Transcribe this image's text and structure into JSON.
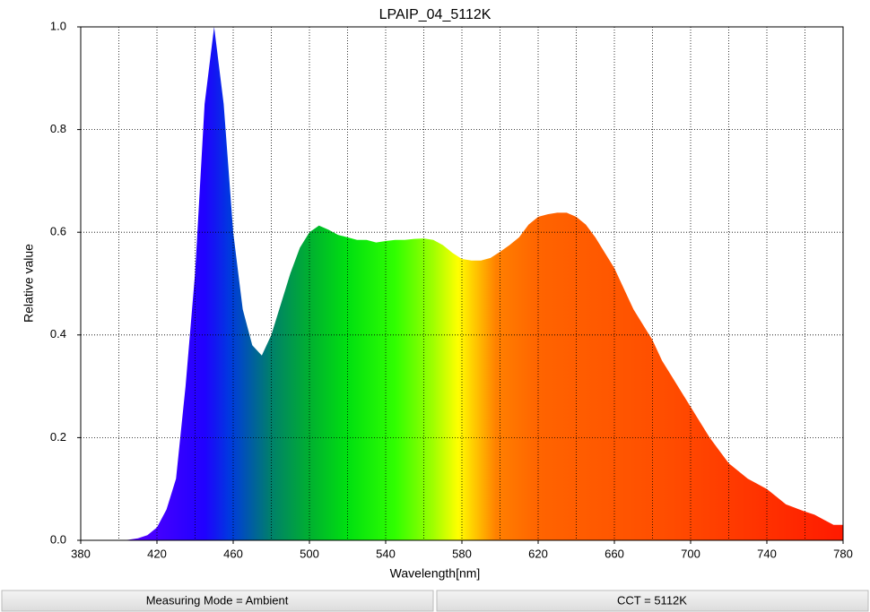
{
  "chart_data": {
    "type": "area",
    "title": "LPAIP_04_5112K",
    "x_label": "Wavelength[nm]",
    "y_label": "Relative value",
    "x": [
      380,
      385,
      390,
      395,
      400,
      405,
      410,
      415,
      420,
      425,
      430,
      435,
      440,
      445,
      450,
      455,
      460,
      465,
      470,
      475,
      480,
      485,
      490,
      495,
      500,
      505,
      510,
      515,
      520,
      525,
      530,
      535,
      540,
      545,
      550,
      555,
      560,
      565,
      570,
      575,
      580,
      585,
      590,
      595,
      600,
      605,
      610,
      615,
      620,
      625,
      630,
      635,
      640,
      645,
      650,
      655,
      660,
      665,
      670,
      675,
      680,
      685,
      690,
      695,
      700,
      705,
      710,
      715,
      720,
      725,
      730,
      735,
      740,
      745,
      750,
      755,
      760,
      765,
      770,
      775,
      780
    ],
    "values": [
      0,
      0,
      0,
      0,
      0,
      0.001,
      0.004,
      0.01,
      0.025,
      0.06,
      0.12,
      0.3,
      0.52,
      0.85,
      1.0,
      0.85,
      0.6,
      0.45,
      0.38,
      0.36,
      0.4,
      0.46,
      0.52,
      0.57,
      0.6,
      0.613,
      0.605,
      0.595,
      0.59,
      0.585,
      0.585,
      0.58,
      0.583,
      0.585,
      0.585,
      0.587,
      0.588,
      0.585,
      0.575,
      0.56,
      0.548,
      0.545,
      0.545,
      0.55,
      0.562,
      0.575,
      0.59,
      0.615,
      0.63,
      0.635,
      0.638,
      0.638,
      0.63,
      0.615,
      0.59,
      0.56,
      0.53,
      0.49,
      0.45,
      0.42,
      0.39,
      0.35,
      0.32,
      0.29,
      0.26,
      0.23,
      0.2,
      0.175,
      0.15,
      0.135,
      0.12,
      0.11,
      0.1,
      0.085,
      0.07,
      0.063,
      0.056,
      0.05,
      0.04,
      0.03,
      0.03
    ],
    "fill_gradient": [
      {
        "wavelength": 400,
        "color": "#6000ff"
      },
      {
        "wavelength": 445,
        "color": "#2000ff"
      },
      {
        "wavelength": 458,
        "color": "#0038e0"
      },
      {
        "wavelength": 480,
        "color": "#00806a"
      },
      {
        "wavelength": 500,
        "color": "#00b030"
      },
      {
        "wavelength": 520,
        "color": "#00e010"
      },
      {
        "wavelength": 545,
        "color": "#30ff00"
      },
      {
        "wavelength": 565,
        "color": "#a0ff00"
      },
      {
        "wavelength": 578,
        "color": "#ffff00"
      },
      {
        "wavelength": 588,
        "color": "#ffc000"
      },
      {
        "wavelength": 598,
        "color": "#ff8000"
      },
      {
        "wavelength": 620,
        "color": "#ff6400"
      },
      {
        "wavelength": 690,
        "color": "#ff4c00"
      },
      {
        "wavelength": 780,
        "color": "#ff1a00"
      }
    ],
    "xlim": [
      380,
      780
    ],
    "ylim": [
      0,
      1
    ],
    "xticks": [
      380,
      420,
      460,
      500,
      540,
      580,
      620,
      660,
      700,
      740,
      780
    ],
    "x_grid_lines": [
      400,
      420,
      440,
      460,
      480,
      500,
      520,
      540,
      560,
      580,
      600,
      620,
      640,
      660,
      680,
      700,
      720,
      740,
      760
    ],
    "yticks": [
      {
        "value": 0,
        "label": "0.0"
      },
      0.2,
      0.4,
      0.6,
      0.8,
      {
        "value": 1,
        "label": "1.0"
      }
    ],
    "grid": true
  },
  "status_bar": [
    "Measuring Mode = Ambient",
    "CCT = 5112K"
  ]
}
